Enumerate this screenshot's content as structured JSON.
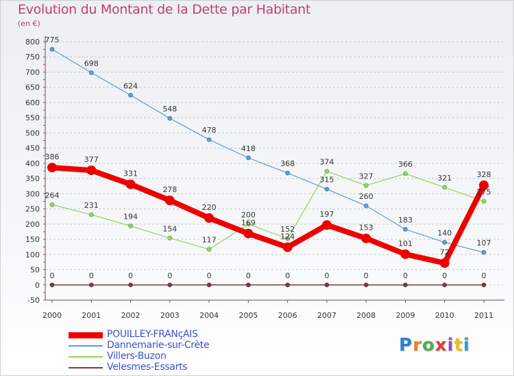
{
  "title": "Evolution du Montant de la Dette par Habitant",
  "subtitle": "(en €)",
  "logo": {
    "text": "Proxiti",
    "colors": [
      "#2b7fd1",
      "#e8832a",
      "#4bb04b",
      "#e03c3c",
      "#9b4fc0",
      "#e8c02a",
      "#2b9fd1"
    ]
  },
  "chart_data": {
    "type": "line",
    "x": [
      "2000",
      "2001",
      "2002",
      "2003",
      "2004",
      "2005",
      "2006",
      "2007",
      "2008",
      "2009",
      "2010",
      "2011"
    ],
    "y_ticks": [
      "-50",
      "0",
      "50",
      "100",
      "150",
      "200",
      "250",
      "300",
      "350",
      "400",
      "450",
      "500",
      "550",
      "600",
      "650",
      "700",
      "750",
      "800"
    ],
    "ylim": [
      -50,
      800
    ],
    "series": [
      {
        "name": "POUILLEY-FRANçAIS",
        "color": "#ee0000",
        "values": [
          386,
          377,
          331,
          278,
          220,
          169,
          124,
          197,
          153,
          101,
          72,
          328
        ]
      },
      {
        "name": "Dannemarie-sur-Crète",
        "color": "#5b9bd5",
        "values": [
          775,
          698,
          624,
          548,
          478,
          418,
          368,
          315,
          260,
          183,
          140,
          107
        ]
      },
      {
        "name": "Villers-Buzon",
        "color": "#8fd65a",
        "values": [
          264,
          231,
          194,
          154,
          117,
          200,
          152,
          374,
          327,
          366,
          321,
          275
        ]
      },
      {
        "name": "Velesmes-Essarts",
        "color": "#7a3b3b",
        "values": [
          0,
          0,
          0,
          0,
          0,
          0,
          0,
          0,
          0,
          0,
          0,
          0
        ]
      }
    ],
    "legend_position": "bottom-left",
    "grid": "horizontal dashed"
  }
}
